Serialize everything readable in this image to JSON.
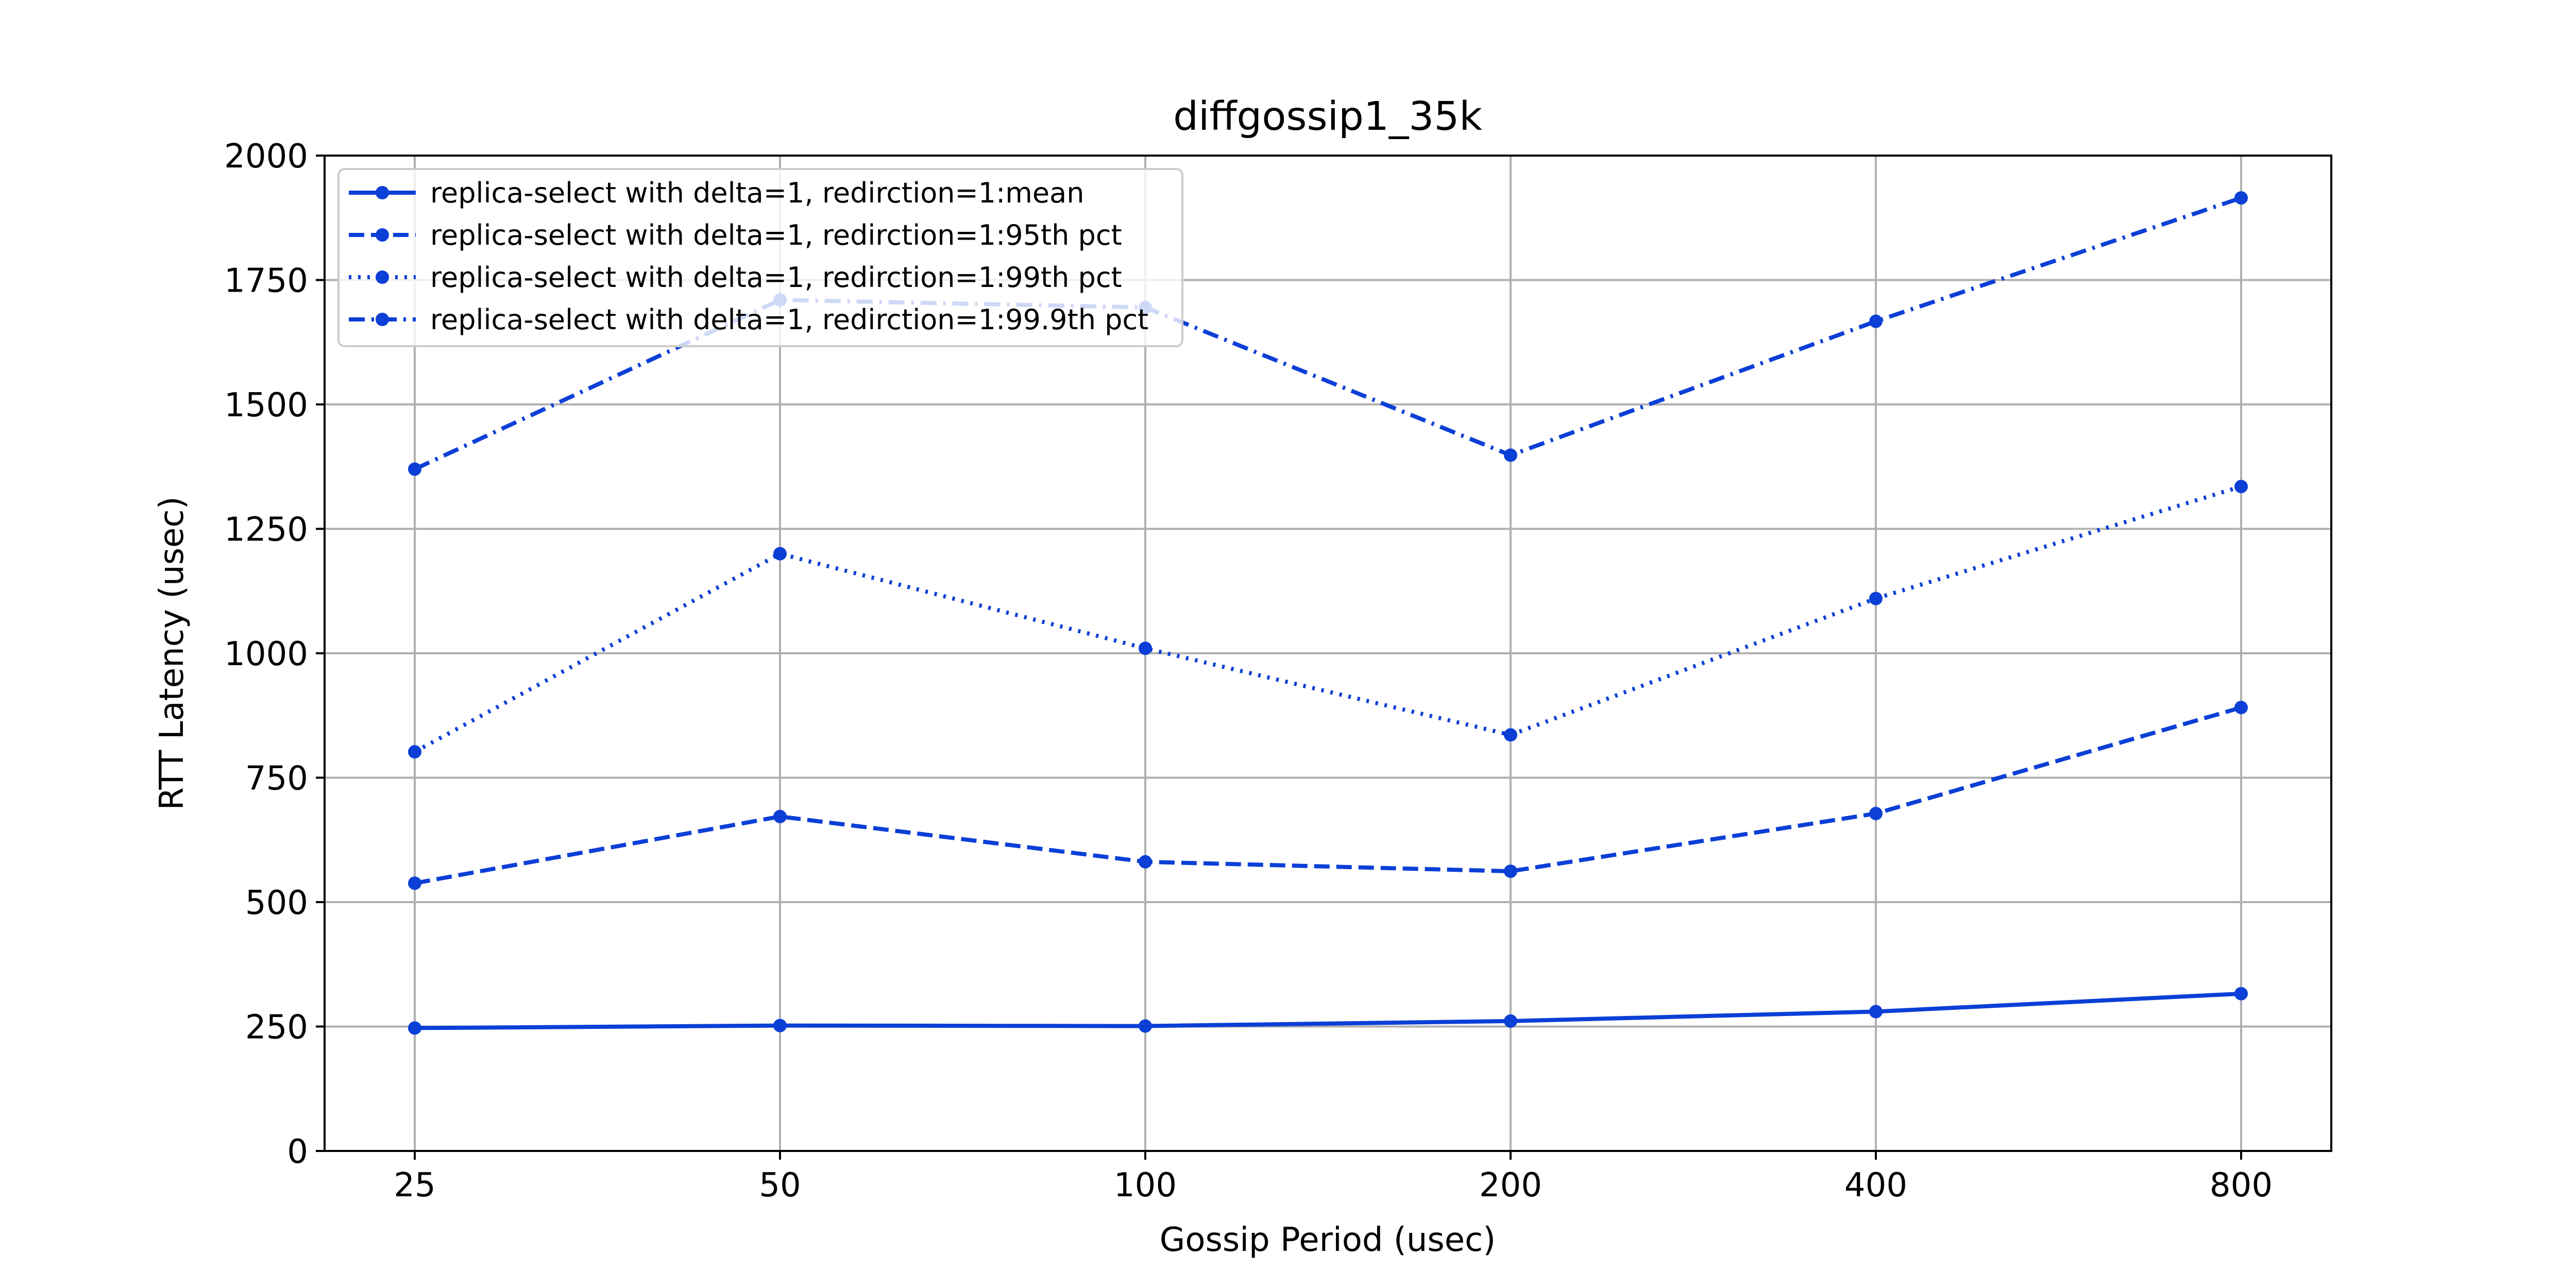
{
  "chart_data": {
    "type": "line",
    "title": "diffgossip1_35k",
    "xlabel": "Gossip Period (usec)",
    "ylabel": "RTT Latency (usec)",
    "categories": [
      "25",
      "50",
      "100",
      "200",
      "400",
      "800"
    ],
    "ylim": [
      0,
      2000
    ],
    "yticks": [
      0,
      250,
      500,
      750,
      1000,
      1250,
      1500,
      1750,
      2000
    ],
    "grid": true,
    "legend_position": "top-left",
    "color": "#0b3fd6",
    "series": [
      {
        "name": "replica-select with delta=1, redirction=1:mean",
        "dash": "solid",
        "values": [
          247,
          252,
          251,
          261,
          280,
          316
        ]
      },
      {
        "name": "replica-select with delta=1, redirction=1:95th pct",
        "dash": "dashed",
        "values": [
          538,
          672,
          581,
          562,
          678,
          891
        ]
      },
      {
        "name": "replica-select with delta=1, redirction=1:99th pct",
        "dash": "dotted",
        "values": [
          802,
          1200,
          1010,
          836,
          1110,
          1335
        ]
      },
      {
        "name": "replica-select with delta=1, redirction=1:99.9th pct",
        "dash": "dashdot",
        "values": [
          1370,
          1710,
          1695,
          1398,
          1667,
          1915
        ]
      }
    ]
  }
}
